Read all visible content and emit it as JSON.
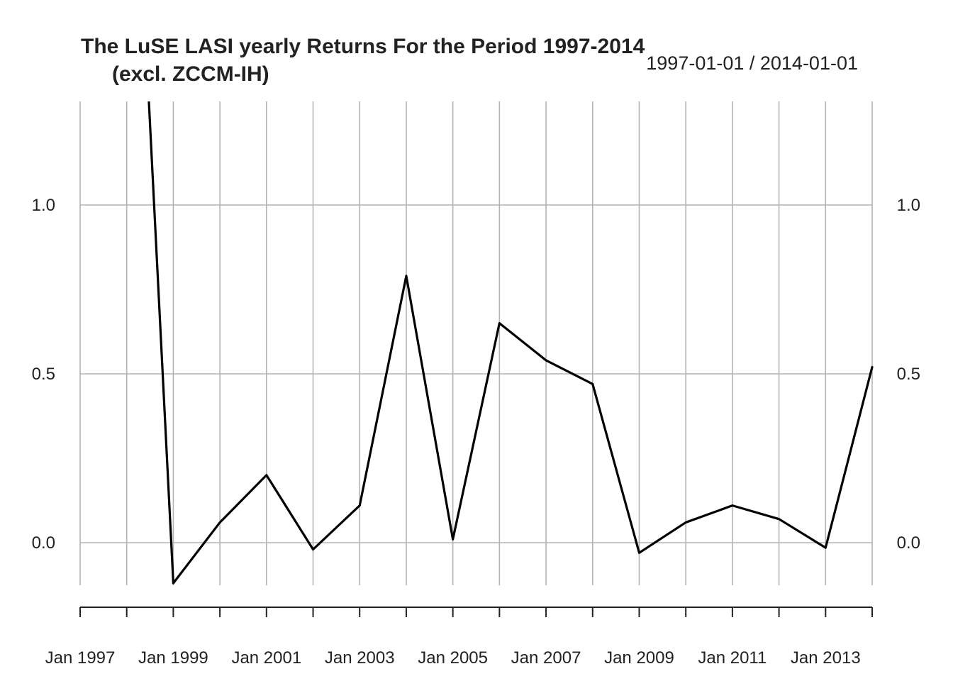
{
  "chart_data": {
    "type": "line",
    "title": "The LuSE LASI yearly Returns For the Period 1997-2014",
    "subtitle": "(excl. ZCCM-IH)",
    "date_range": "1997-01-01 / 2014-01-01",
    "xlabel": "",
    "ylabel": "",
    "x": [
      "1997-01-01",
      "1998-01-01",
      "1999-01-01",
      "2000-01-01",
      "2001-01-01",
      "2002-01-01",
      "2003-01-01",
      "2004-01-01",
      "2005-01-01",
      "2006-01-01",
      "2007-01-01",
      "2008-01-01",
      "2009-01-01",
      "2010-01-01",
      "2011-01-01",
      "2012-01-01",
      "2013-01-01",
      "2014-01-01"
    ],
    "values": [
      null,
      2.6,
      -0.12,
      0.06,
      0.2,
      -0.02,
      0.11,
      0.79,
      0.01,
      0.65,
      0.54,
      0.47,
      -0.03,
      0.06,
      0.11,
      0.07,
      -0.015,
      0.52
    ],
    "ylim": [
      -0.12,
      1.3
    ],
    "y_ticks": [
      0.0,
      0.5,
      1.0
    ],
    "y_tick_labels": [
      "0.0",
      "0.5",
      "1.0"
    ],
    "x_tick_labels": [
      {
        "date": "1997-01-01",
        "label": "Jan 1997"
      },
      {
        "date": "1999-01-01",
        "label": "Jan 1999"
      },
      {
        "date": "2001-01-01",
        "label": "Jan 2001"
      },
      {
        "date": "2003-01-01",
        "label": "Jan 2003"
      },
      {
        "date": "2005-01-01",
        "label": "Jan 2005"
      },
      {
        "date": "2007-01-01",
        "label": "Jan 2007"
      },
      {
        "date": "2009-01-01",
        "label": "Jan 2009"
      },
      {
        "date": "2011-01-01",
        "label": "Jan 2011"
      },
      {
        "date": "2013-01-01",
        "label": "Jan 2013"
      }
    ],
    "grid": true,
    "line_color": "#000000",
    "grid_color": "#b3b3b3"
  }
}
